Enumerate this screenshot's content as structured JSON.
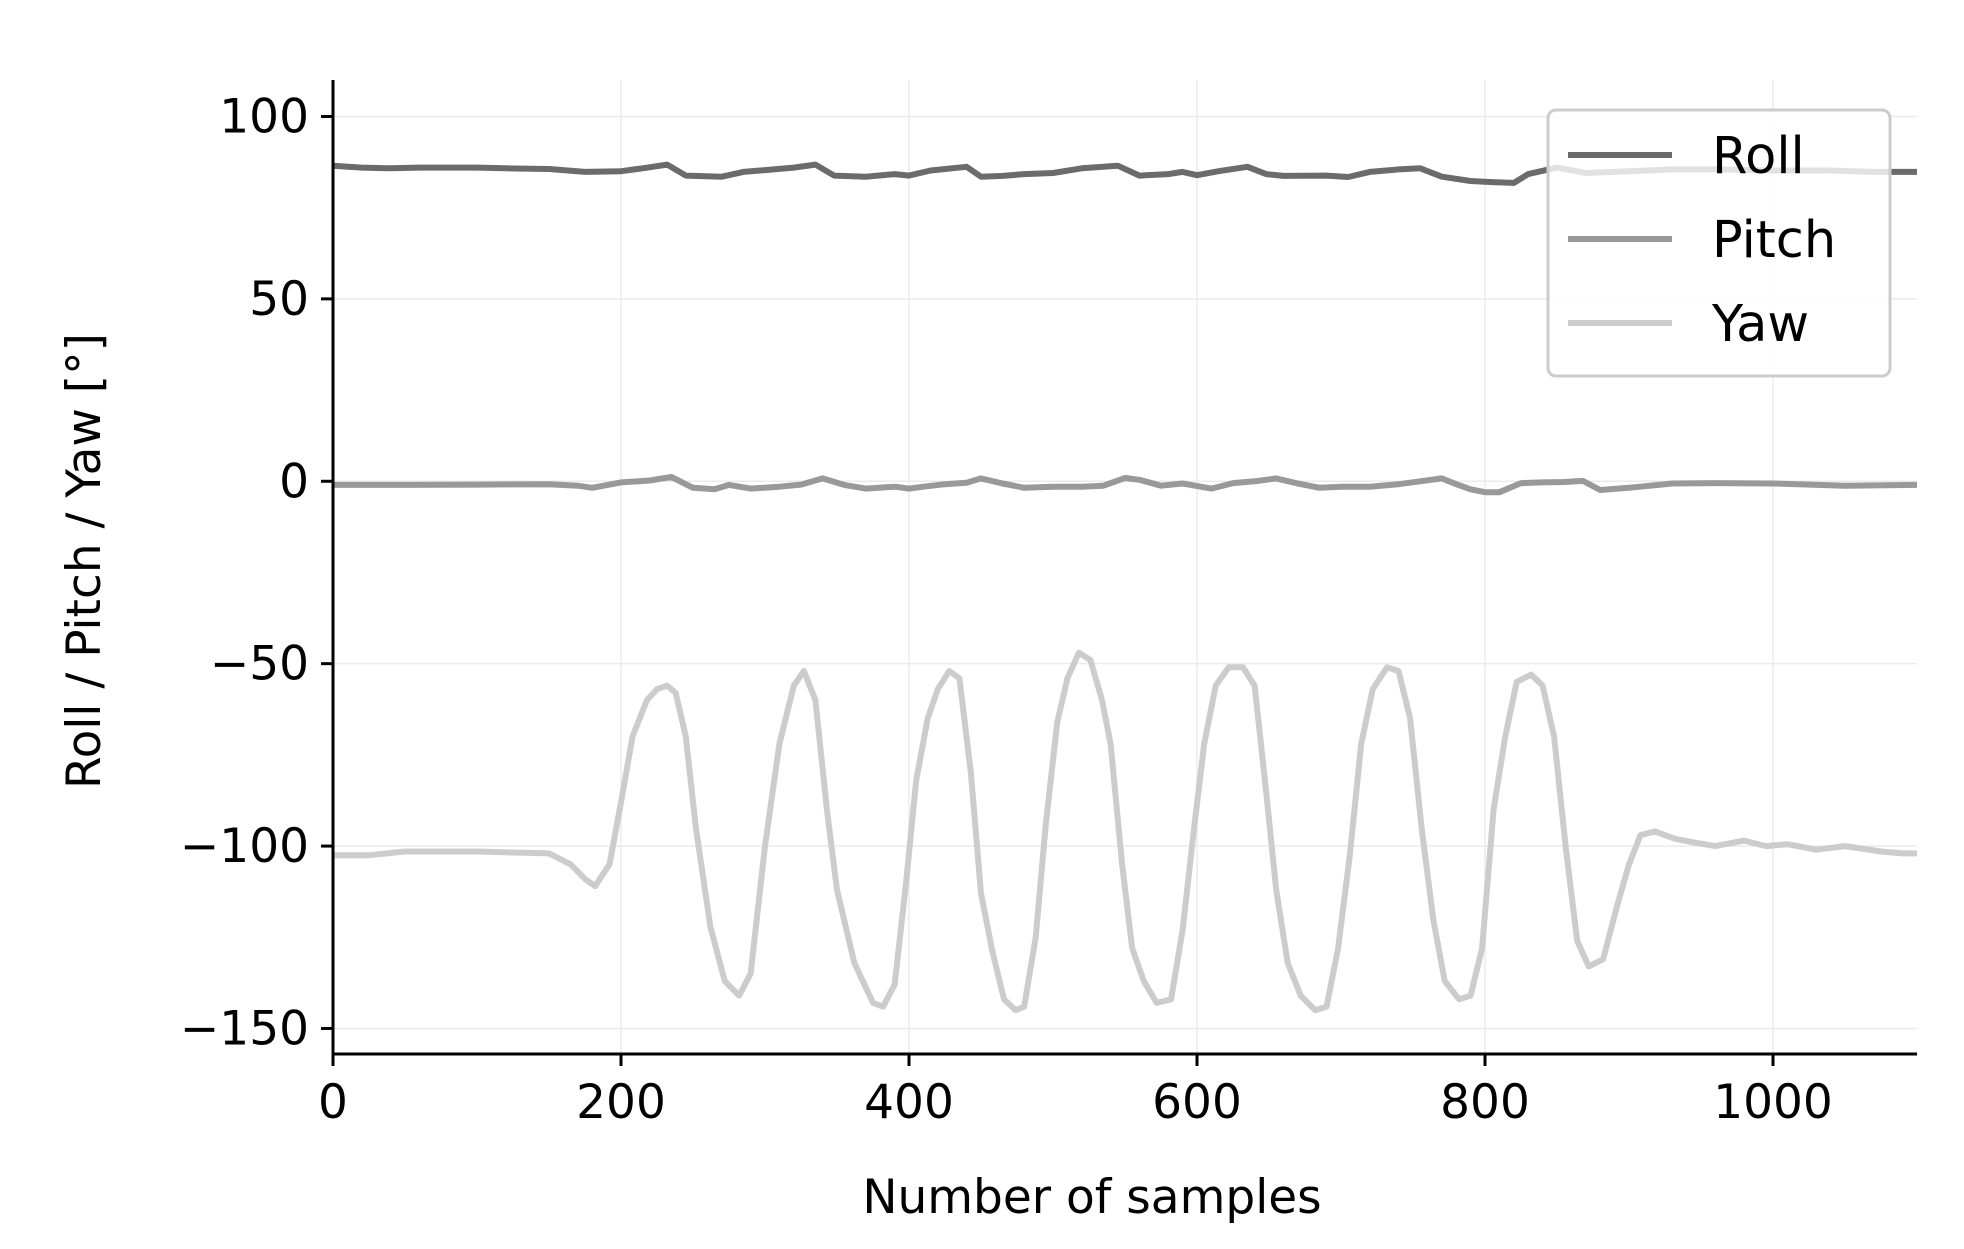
{
  "chart_data": {
    "type": "line",
    "xlabel": "Number of samples",
    "ylabel": "Roll / Pitch / Yaw [°]",
    "xlim": [
      0,
      1100
    ],
    "ylim": [
      -157,
      110
    ],
    "xticks": [
      0,
      200,
      400,
      600,
      800,
      1000
    ],
    "xtick_labels": [
      "0",
      "200",
      "400",
      "600",
      "800",
      "1000"
    ],
    "yticks": [
      100,
      50,
      0,
      -50,
      -100,
      -150
    ],
    "ytick_labels": [
      "100",
      "50",
      "0",
      "−50",
      "−100",
      "−150"
    ],
    "grid": true,
    "legend_position": "upper right",
    "series": [
      {
        "name": "Roll",
        "color": "#6b6b6b",
        "x": [
          0,
          20,
          40,
          60,
          80,
          100,
          120,
          150,
          175,
          200,
          215,
          232,
          245,
          270,
          285,
          300,
          320,
          335,
          348,
          370,
          390,
          400,
          415,
          440,
          450,
          465,
          480,
          500,
          520,
          545,
          560,
          580,
          590,
          600,
          615,
          635,
          648,
          660,
          690,
          705,
          720,
          740,
          755,
          770,
          790,
          805,
          820,
          830,
          850,
          870,
          900,
          930,
          960,
          1000,
          1040,
          1070,
          1100
        ],
        "y": [
          86.5,
          86,
          85.8,
          86,
          86,
          86,
          85.8,
          85.6,
          84.8,
          85,
          85.8,
          86.8,
          83.8,
          83.5,
          84.8,
          85.3,
          86,
          86.8,
          83.8,
          83.5,
          84.2,
          83.8,
          85.2,
          86.2,
          83.5,
          83.7,
          84.2,
          84.5,
          85.8,
          86.5,
          83.8,
          84.2,
          84.8,
          83.9,
          85,
          86.2,
          84.2,
          83.7,
          83.8,
          83.4,
          84.8,
          85.5,
          85.8,
          83.5,
          82.3,
          82,
          81.8,
          84.2,
          86,
          84.5,
          85,
          85.5,
          85.5,
          85.2,
          85.2,
          84.8,
          84.8
        ]
      },
      {
        "name": "Pitch",
        "color": "#999999",
        "x": [
          0,
          50,
          100,
          150,
          170,
          180,
          200,
          220,
          235,
          250,
          265,
          275,
          290,
          310,
          325,
          340,
          355,
          370,
          390,
          400,
          410,
          425,
          440,
          450,
          465,
          480,
          500,
          520,
          535,
          550,
          560,
          575,
          590,
          610,
          625,
          640,
          655,
          670,
          685,
          700,
          720,
          740,
          755,
          770,
          780,
          790,
          800,
          810,
          825,
          840,
          855,
          868,
          880,
          900,
          930,
          960,
          1000,
          1050,
          1100
        ],
        "y": [
          -1,
          -1,
          -0.9,
          -0.8,
          -1.2,
          -1.8,
          -0.3,
          0.2,
          1.2,
          -1.8,
          -2.2,
          -1,
          -2,
          -1.5,
          -0.9,
          0.8,
          -1,
          -2,
          -1.5,
          -2,
          -1.5,
          -0.8,
          -0.4,
          0.8,
          -0.6,
          -1.8,
          -1.5,
          -1.5,
          -1.2,
          0.9,
          0.4,
          -1.2,
          -0.6,
          -2,
          -0.5,
          0,
          0.8,
          -0.6,
          -1.8,
          -1.5,
          -1.5,
          -0.8,
          0,
          0.8,
          -0.8,
          -2.2,
          -3,
          -3,
          -0.5,
          -0.3,
          -0.2,
          0.1,
          -2.4,
          -1.8,
          -0.6,
          -0.5,
          -0.6,
          -1.2,
          -1
        ]
      },
      {
        "name": "Yaw",
        "color": "#cccccc",
        "x": [
          0,
          25,
          50,
          100,
          150,
          165,
          175,
          182,
          192,
          200,
          208,
          218,
          225,
          232,
          238,
          245,
          252,
          262,
          272,
          282,
          290,
          300,
          310,
          320,
          327,
          335,
          343,
          350,
          362,
          375,
          382,
          390,
          398,
          405,
          413,
          420,
          428,
          435,
          443,
          450,
          458,
          466,
          474,
          480,
          488,
          495,
          503,
          510,
          518,
          526,
          534,
          540,
          548,
          555,
          563,
          572,
          582,
          590,
          598,
          605,
          613,
          622,
          632,
          640,
          648,
          655,
          663,
          672,
          682,
          690,
          698,
          706,
          714,
          722,
          732,
          740,
          748,
          756,
          764,
          772,
          782,
          790,
          798,
          806,
          814,
          822,
          832,
          840,
          848,
          856,
          864,
          872,
          882,
          892,
          900,
          908,
          918,
          932,
          945,
          960,
          980,
          995,
          1010,
          1030,
          1050,
          1075,
          1090,
          1100
        ],
        "y": [
          -102.5,
          -102.5,
          -101.5,
          -101.5,
          -102,
          -105,
          -109,
          -111,
          -105,
          -88,
          -70,
          -60,
          -57,
          -56,
          -58,
          -70,
          -95,
          -122,
          -137,
          -141,
          -135,
          -100,
          -72,
          -56,
          -52,
          -60,
          -90,
          -112,
          -132,
          -143,
          -144,
          -138,
          -110,
          -82,
          -65,
          -57,
          -52,
          -54,
          -80,
          -113,
          -129,
          -142,
          -145,
          -144,
          -125,
          -94,
          -66,
          -54,
          -47,
          -49,
          -60,
          -72,
          -105,
          -128,
          -137,
          -143,
          -142,
          -123,
          -95,
          -72,
          -56,
          -51,
          -51,
          -56,
          -85,
          -112,
          -132,
          -141,
          -145,
          -144,
          -128,
          -103,
          -72,
          -57,
          -51,
          -52,
          -65,
          -95,
          -120,
          -137,
          -142,
          -141,
          -128,
          -90,
          -70,
          -55,
          -53,
          -56,
          -70,
          -100,
          -126,
          -133,
          -131,
          -116,
          -105,
          -97,
          -96,
          -98,
          -99,
          -100,
          -98.5,
          -100,
          -99.5,
          -101,
          -100,
          -101.5,
          -102,
          -102
        ]
      }
    ]
  }
}
